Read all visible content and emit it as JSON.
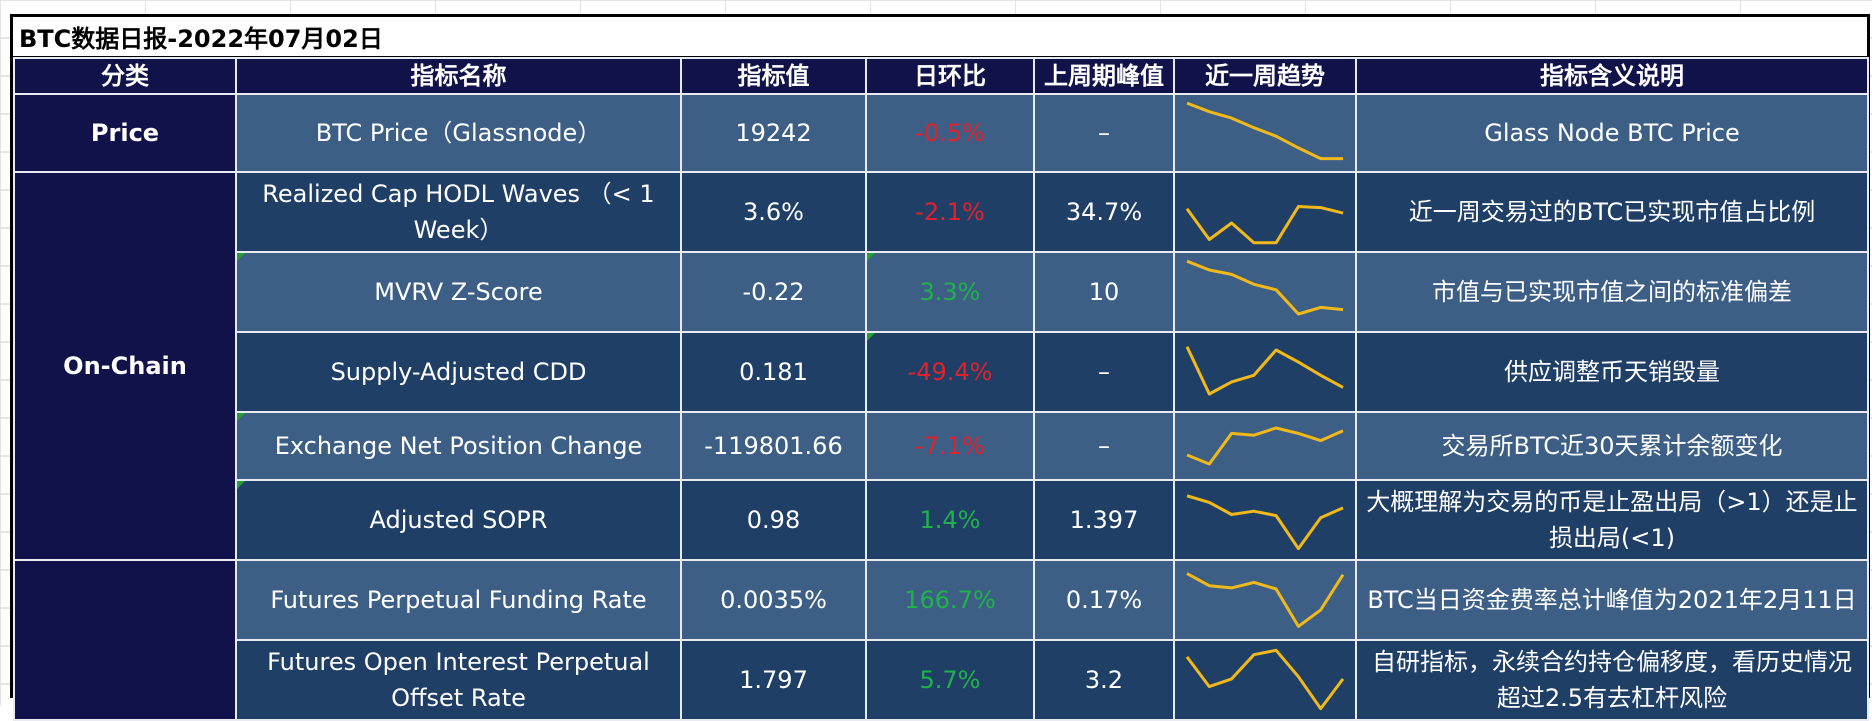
{
  "title": "BTC数据日报-2022年07月02日",
  "headers": [
    "分类",
    "指标名称",
    "指标值",
    "日环比",
    "上周期峰值",
    "近一周趋势",
    "指标含义说明"
  ],
  "categories": {
    "price": "Price",
    "onchain": "On-Chain",
    "derivatives": ""
  },
  "rows": [
    {
      "name": "BTC Price（Glassnode）",
      "value": "19242",
      "change": "-0.5%",
      "change_dir": "neg",
      "peak": "–",
      "desc": "Glass Node BTC Price",
      "trend": [
        6,
        5.2,
        4.6,
        3.7,
        2.9,
        1.8,
        0.8,
        0.8
      ]
    },
    {
      "name": "Realized Cap HODL Waves （< 1 Week）",
      "value": "3.6%",
      "change": "-2.1%",
      "change_dir": "neg",
      "peak": "34.7%",
      "desc": "近一周交易过的BTC已实现市值占比例",
      "trend": [
        3.5,
        0.7,
        2.2,
        0.4,
        0.4,
        3.7,
        3.6,
        3.1
      ]
    },
    {
      "name": "MVRV Z-Score",
      "value": "-0.22",
      "change": "3.3%",
      "change_dir": "pos",
      "peak": "10",
      "desc": "市值与已实现市值之间的标准偏差",
      "trend": [
        6,
        5.2,
        4.8,
        3.9,
        3.4,
        1.2,
        1.8,
        1.6
      ]
    },
    {
      "name": "Supply-Adjusted CDD",
      "value": "0.181",
      "change": "-49.4%",
      "change_dir": "neg",
      "peak": "–",
      "desc": "供应调整币天销毁量",
      "trend": [
        5.5,
        1.2,
        2.3,
        2.9,
        5.2,
        4.1,
        2.9,
        1.8
      ]
    },
    {
      "name": "Exchange Net Position Change",
      "value": "-119801.66",
      "change": "-7.1%",
      "change_dir": "neg",
      "peak": "–",
      "desc": "交易所BTC近30天累计余额变化",
      "trend": [
        2.2,
        1.2,
        4.6,
        4.4,
        5.2,
        4.6,
        3.8,
        4.9
      ]
    },
    {
      "name": "Adjusted SOPR",
      "value": "0.98",
      "change": "1.4%",
      "change_dir": "pos",
      "peak": "1.397",
      "desc": "大概理解为交易的币是止盈出局（>1）还是止损出局(<1)",
      "trend": [
        5.4,
        4.8,
        3.7,
        4.0,
        3.6,
        0.6,
        3.4,
        4.3
      ]
    },
    {
      "name": "Futures Perpetual Funding Rate",
      "value": "0.0035%",
      "change": "166.7%",
      "change_dir": "pos",
      "peak": "0.17%",
      "desc": "BTC当日资金费率总计峰值为2021年2月11日",
      "trend": [
        5.6,
        4.5,
        4.3,
        4.8,
        4.2,
        0.8,
        2.3,
        5.5
      ]
    },
    {
      "name": "Futures Open Interest Perpetual Offset Rate",
      "value": "1.797",
      "change": "5.7%",
      "change_dir": "pos",
      "peak": "3.2",
      "desc": "自研指标，永续合约持仓偏移度，看历史情况超过2.5有去杠杆风险",
      "trend": [
        5.3,
        2.6,
        3.3,
        5.5,
        5.9,
        3.5,
        0.6,
        3.3
      ]
    }
  ],
  "colors": {
    "trend_line": "#f0b81a",
    "negative": "#e0222c",
    "positive": "#1fb24a",
    "header_bg": "#12124a"
  }
}
